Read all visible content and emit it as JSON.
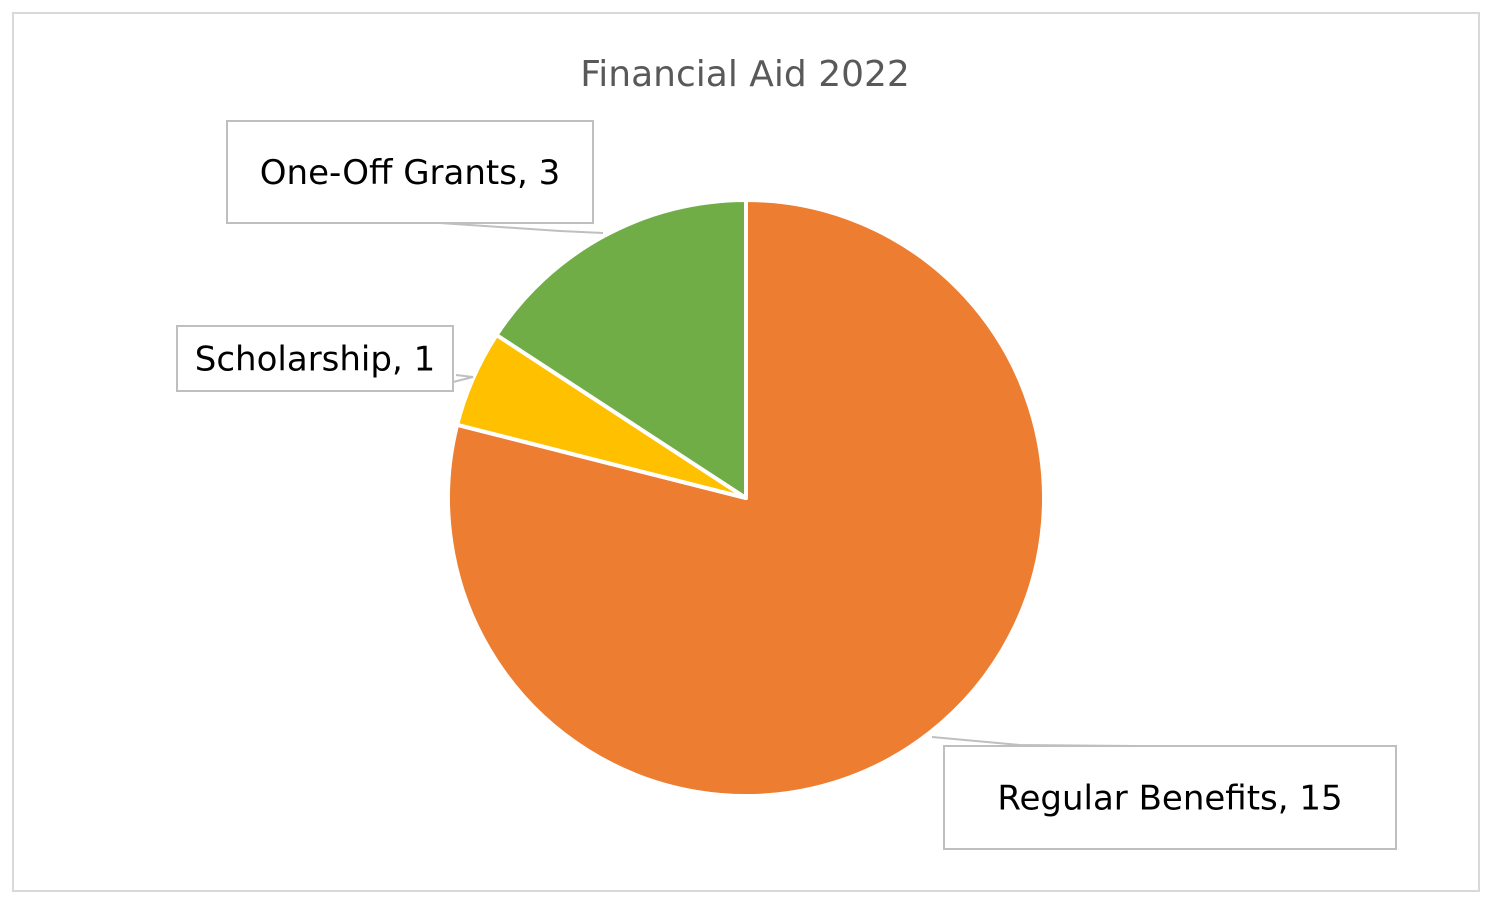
{
  "chart_data": {
    "type": "pie",
    "title": "Financial Aid 2022",
    "categories": [
      "Regular Benefits",
      "Scholarship",
      "One-Off Grants"
    ],
    "values": [
      15,
      1,
      3
    ],
    "colors": [
      "#ED7D31",
      "#FFC000",
      "#70AD47"
    ],
    "start_angle": "12 o'clock",
    "direction": "clockwise",
    "data_labels": [
      "Regular Benefits, 15",
      "Scholarship, 1",
      "One-Off Grants, 3"
    ],
    "legend": "none"
  }
}
